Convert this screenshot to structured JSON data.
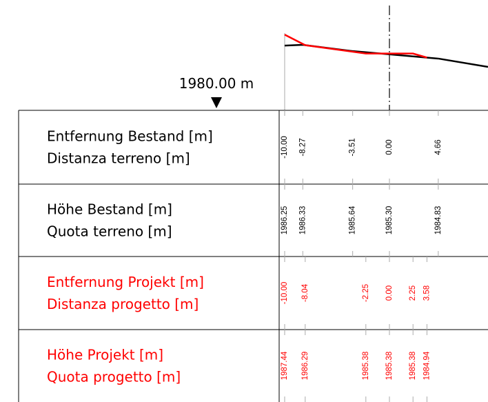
{
  "reference": {
    "label": "1980.00 m"
  },
  "rows": [
    {
      "label": [
        "Entfernung Bestand [m]",
        "Distanza terreno [m]"
      ],
      "color": "#000000",
      "values": [
        "-10.00",
        "-8.27",
        "-3.51",
        "0.00",
        "4.66"
      ]
    },
    {
      "label": [
        "Höhe Bestand [m]",
        "Quota terreno [m]"
      ],
      "color": "#000000",
      "values": [
        "1986.25",
        "1986.33",
        "1985.64",
        "1985.30",
        "1984.83"
      ]
    },
    {
      "label": [
        "Entfernung Projekt [m]",
        "Distanza progetto [m]"
      ],
      "color": "#ff0000",
      "values": [
        "-10.00",
        "-8.04",
        "-2.25",
        "0.00",
        "2.25",
        "3.58"
      ]
    },
    {
      "label": [
        "Höhe Projekt [m]",
        "Quota progetto [m]"
      ],
      "color": "#ff0000",
      "values": [
        "1987.44",
        "1986.29",
        "1985.38",
        "1985.38",
        "1985.38",
        "1984.94"
      ]
    }
  ]
}
